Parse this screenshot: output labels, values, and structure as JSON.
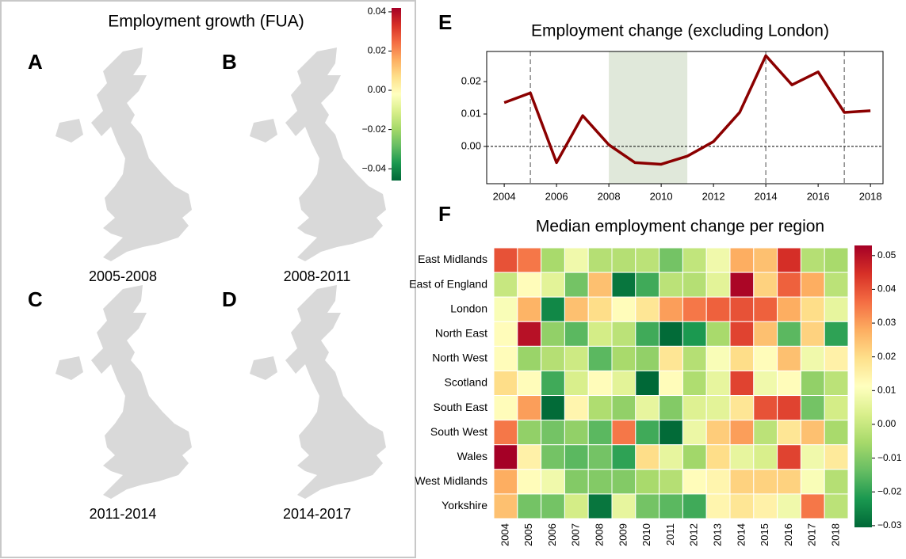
{
  "chart_data": [
    {
      "type": "choropleth",
      "title": "Employment growth (FUA)",
      "panels": [
        {
          "letter": "A",
          "caption": "2005-2008"
        },
        {
          "letter": "B",
          "caption": "2008-2011"
        },
        {
          "letter": "C",
          "caption": "2011-2014"
        },
        {
          "letter": "D",
          "caption": "2014-2017"
        }
      ],
      "clim": [
        -0.046,
        0.042
      ],
      "cticks": [
        0.04,
        0.02,
        {
          "value": 0,
          "label": "0.00"
        },
        {
          "value": -0.02,
          "label": "−0.02"
        },
        {
          "value": -0.04,
          "label": "−0.04"
        }
      ],
      "colormap": [
        "#006837",
        "#1a9850",
        "#66bd63",
        "#a6d96a",
        "#d9ef8b",
        "#ffffbf",
        "#fee08b",
        "#fdae61",
        "#f46d43",
        "#d73027",
        "#a50026"
      ]
    },
    {
      "type": "line",
      "panel": "E",
      "title": "Employment change (excluding London)",
      "x": [
        2004,
        2005,
        2006,
        2007,
        2008,
        2009,
        2010,
        2011,
        2012,
        2013,
        2014,
        2015,
        2016,
        2017,
        2018
      ],
      "values": [
        0.0135,
        0.0165,
        -0.005,
        0.0095,
        0.0005,
        -0.005,
        -0.0055,
        -0.003,
        0.0015,
        0.0105,
        0.028,
        0.019,
        0.023,
        0.0105,
        0.011
      ],
      "color": "#8b0000",
      "xlim": [
        2003.33,
        2018.48
      ],
      "xticks": [
        2004,
        2006,
        2008,
        2010,
        2012,
        2014,
        2016,
        2018
      ],
      "ylim": [
        -0.0115,
        0.0293
      ],
      "yticks": [
        {
          "value": 0,
          "label": "0.00"
        },
        0.01,
        0.02
      ],
      "vlines": [
        2005,
        2014,
        2017
      ],
      "hline": 0,
      "shaded_span": [
        2008,
        2011
      ]
    },
    {
      "type": "heatmap",
      "panel": "F",
      "title": "Median employment change per region",
      "categories": [
        "2004",
        "2005",
        "2006",
        "2007",
        "2008",
        "2009",
        "2010",
        "2011",
        "2012",
        "2013",
        "2014",
        "2015",
        "2016",
        "2017",
        "2018"
      ],
      "rows": [
        "East Midlands",
        "East of England",
        "London",
        "North East",
        "North West",
        "Scotland",
        "South East",
        "South West",
        "Wales",
        "West Midlands",
        "Yorkshire"
      ],
      "values": [
        [
          0.04,
          0.035,
          -0.005,
          0.008,
          -0.003,
          -0.003,
          -0.002,
          -0.012,
          -0.001,
          0.008,
          0.028,
          0.025,
          0.045,
          -0.003,
          -0.005
        ],
        [
          0.0,
          0.012,
          0.005,
          -0.012,
          0.025,
          -0.028,
          -0.018,
          -0.002,
          -0.003,
          0.005,
          0.052,
          0.022,
          0.038,
          0.028,
          -0.002
        ],
        [
          0.01,
          0.027,
          -0.025,
          0.025,
          0.02,
          0.012,
          0.018,
          0.03,
          0.035,
          0.038,
          0.04,
          0.038,
          0.028,
          0.02,
          0.006
        ],
        [
          0.012,
          0.05,
          -0.008,
          -0.015,
          0.002,
          -0.002,
          -0.018,
          -0.03,
          -0.022,
          -0.005,
          0.042,
          0.025,
          -0.015,
          0.022,
          -0.02
        ],
        [
          0.012,
          -0.007,
          -0.003,
          0.001,
          -0.015,
          -0.005,
          -0.008,
          0.018,
          -0.003,
          0.01,
          0.02,
          0.012,
          0.025,
          0.008,
          0.015
        ],
        [
          0.02,
          0.012,
          -0.018,
          0.003,
          0.012,
          0.005,
          -0.038,
          0.012,
          -0.004,
          0.006,
          0.042,
          0.008,
          0.012,
          -0.008,
          -0.002
        ],
        [
          0.012,
          0.03,
          -0.03,
          0.014,
          -0.004,
          -0.008,
          0.006,
          -0.01,
          0.004,
          0.005,
          0.018,
          0.04,
          0.042,
          -0.012,
          0.002
        ],
        [
          0.035,
          -0.008,
          -0.012,
          -0.008,
          -0.015,
          0.035,
          -0.018,
          -0.03,
          0.007,
          0.023,
          0.03,
          -0.002,
          0.018,
          0.025,
          -0.005
        ],
        [
          0.053,
          0.015,
          -0.012,
          -0.015,
          -0.012,
          -0.02,
          0.02,
          0.006,
          -0.006,
          0.02,
          0.006,
          0.003,
          0.042,
          0.008,
          0.017
        ],
        [
          0.028,
          0.012,
          0.008,
          -0.01,
          -0.01,
          -0.01,
          -0.005,
          -0.003,
          0.012,
          0.014,
          0.022,
          0.022,
          0.022,
          0.01,
          -0.003
        ],
        [
          0.025,
          -0.012,
          -0.012,
          0.002,
          -0.028,
          0.006,
          -0.012,
          -0.015,
          -0.018,
          0.014,
          0.018,
          0.015,
          0.008,
          0.035,
          -0.002
        ]
      ],
      "clim": [
        -0.0305,
        0.053
      ],
      "cticks": [
        0.05,
        0.04,
        0.03,
        0.02,
        0.01,
        {
          "value": 0,
          "label": "0.00"
        },
        {
          "value": -0.01,
          "label": "−0.01"
        },
        {
          "value": -0.02,
          "label": "−0.02"
        },
        {
          "value": -0.03,
          "label": "−0.03"
        }
      ],
      "colormap": [
        "#006837",
        "#1a9850",
        "#66bd63",
        "#a6d96a",
        "#d9ef8b",
        "#ffffbf",
        "#fee08b",
        "#fdae61",
        "#f46d43",
        "#d73027",
        "#a50026"
      ]
    }
  ]
}
